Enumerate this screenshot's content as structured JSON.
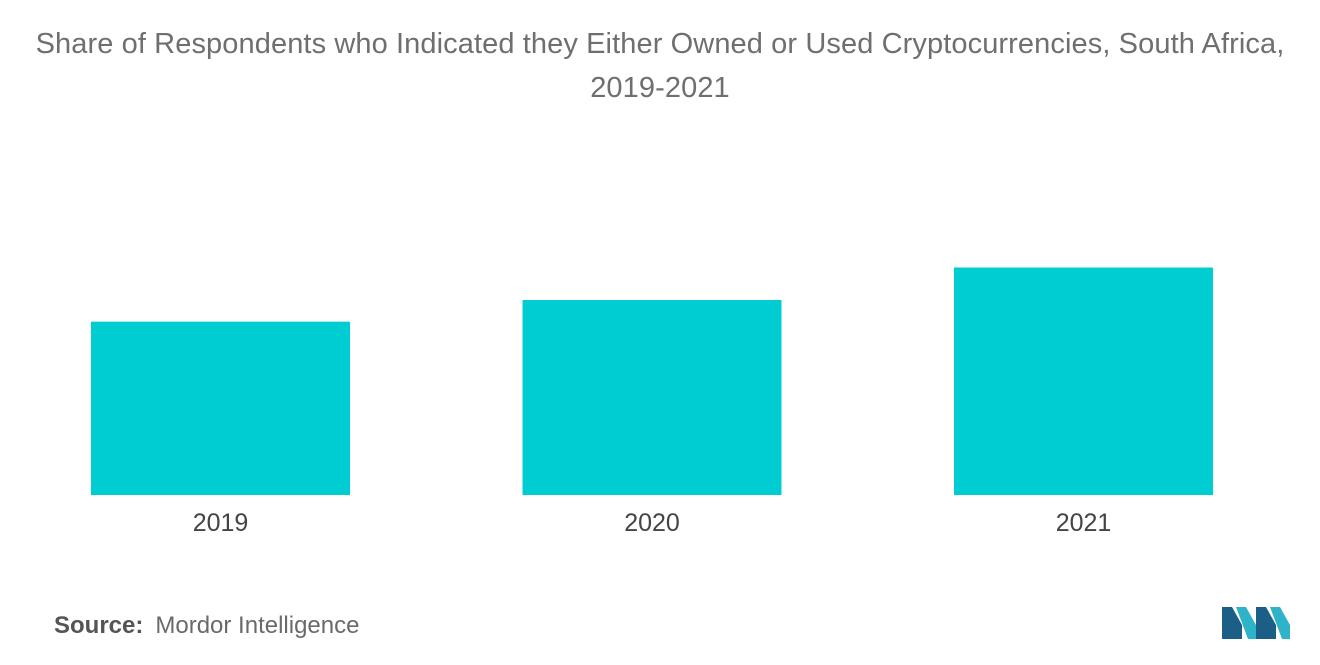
{
  "title": "Share of Respondents who Indicated they Either Owned or Used Cryptocurrencies, South Africa, 2019-2021",
  "source": {
    "label": "Source:",
    "text": "Mordor Intelligence"
  },
  "logo": {
    "icon": "mordor-intelligence-logo-icon",
    "colors": [
      "#1b5f87",
      "#2fb3c9"
    ]
  },
  "chart_data": {
    "type": "bar",
    "categories": [
      "2019",
      "2020",
      "2021"
    ],
    "values": [
      0.8,
      0.9,
      1.05
    ],
    "title": "Share of Respondents who Indicated they Either Owned or Used Cryptocurrencies, South Africa, 2019-2021",
    "xlabel": "",
    "ylabel": "",
    "ylim": [
      0,
      1.2
    ],
    "grid": false,
    "legend": "none",
    "bar_color": "#00cdd1"
  }
}
